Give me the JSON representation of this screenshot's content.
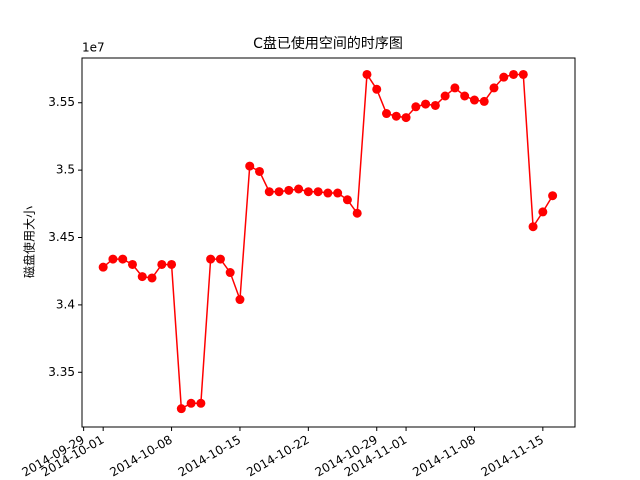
{
  "chart_data": {
    "type": "line",
    "title": "C盘已使用空间的时序图",
    "y_label": "磁盘使用大小",
    "y_offset_label": "1e7",
    "x": [
      "2014-10-01",
      "2014-10-02",
      "2014-10-03",
      "2014-10-04",
      "2014-10-05",
      "2014-10-06",
      "2014-10-07",
      "2014-10-08",
      "2014-10-09",
      "2014-10-10",
      "2014-10-11",
      "2014-10-12",
      "2014-10-13",
      "2014-10-14",
      "2014-10-15",
      "2014-10-16",
      "2014-10-17",
      "2014-10-18",
      "2014-10-19",
      "2014-10-20",
      "2014-10-21",
      "2014-10-22",
      "2014-10-23",
      "2014-10-24",
      "2014-10-25",
      "2014-10-26",
      "2014-10-27",
      "2014-10-28",
      "2014-10-29",
      "2014-10-30",
      "2014-10-31",
      "2014-11-01",
      "2014-11-02",
      "2014-11-03",
      "2014-11-04",
      "2014-11-05",
      "2014-11-06",
      "2014-11-07",
      "2014-11-08",
      "2014-11-09",
      "2014-11-10",
      "2014-11-11",
      "2014-11-12",
      "2014-11-13",
      "2014-11-14",
      "2014-11-15",
      "2014-11-16"
    ],
    "values": [
      3.428,
      3.434,
      3.434,
      3.43,
      3.421,
      3.42,
      3.43,
      3.43,
      3.323,
      3.327,
      3.327,
      3.434,
      3.434,
      3.424,
      3.404,
      3.503,
      3.499,
      3.484,
      3.484,
      3.485,
      3.486,
      3.484,
      3.484,
      3.483,
      3.483,
      3.478,
      3.468,
      3.571,
      3.56,
      3.542,
      3.54,
      3.539,
      3.547,
      3.549,
      3.548,
      3.555,
      3.561,
      3.555,
      3.552,
      3.551,
      3.561,
      3.569,
      3.571,
      3.571,
      3.458,
      3.469,
      3.481
    ],
    "color": "#ff0000",
    "marker": true,
    "xlim": [
      "2014-09-28T20:00",
      "2014-11-18T07:00"
    ],
    "xticks": [
      "2014-09-29",
      "2014-10-01",
      "2014-10-08",
      "2014-10-15",
      "2014-10-22",
      "2014-10-29",
      "2014-11-01",
      "2014-11-08",
      "2014-11-15"
    ],
    "ylim": [
      3.3094,
      3.5832
    ],
    "yticks": [
      3.35,
      3.4,
      3.45,
      3.5,
      3.55
    ]
  }
}
